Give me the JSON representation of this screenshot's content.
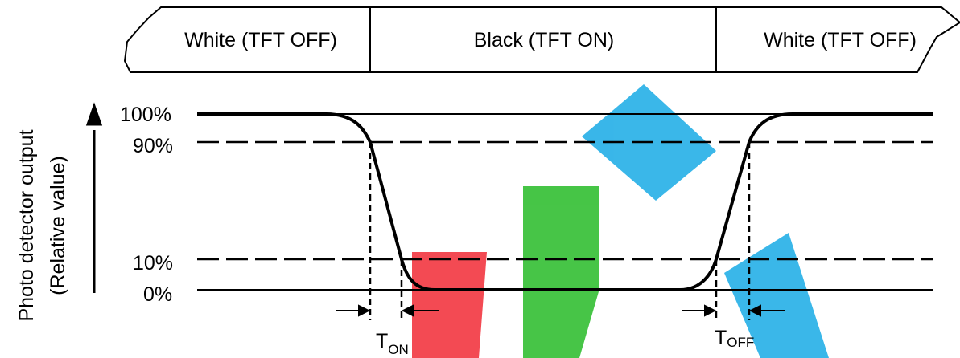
{
  "colors": {
    "ink": "#000000",
    "background": "#ffffff",
    "watermark_red": "#f2404a",
    "watermark_green": "#3dc23d",
    "watermark_blue": "#2fb3e8"
  },
  "display_states": {
    "left": "White (TFT OFF)",
    "middle": "Black (TFT ON)",
    "right": "White (TFT OFF)"
  },
  "y_axis": {
    "label_line1": "Photo detector output",
    "label_line2": "(Relative value)"
  },
  "levels": {
    "full": "100%",
    "upper_threshold": "90%",
    "lower_threshold": "10%",
    "zero": "0%"
  },
  "timings": {
    "turn_on": {
      "main": "T",
      "sub": "ON"
    },
    "turn_off": {
      "main": "T",
      "sub": "OFF"
    }
  },
  "watermark": {
    "icon": "luxy-watermark"
  }
}
